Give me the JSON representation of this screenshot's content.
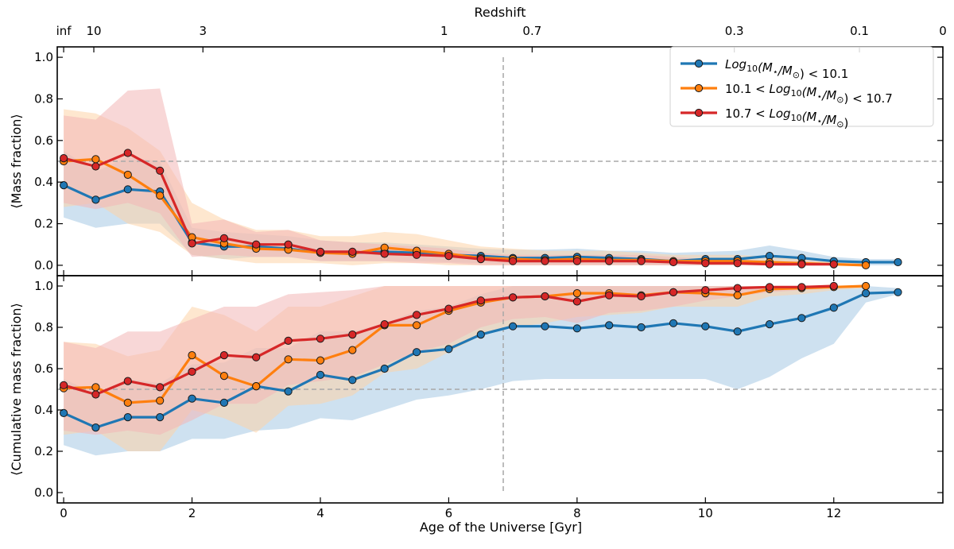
{
  "chart_data": [
    {
      "type": "line",
      "panel": "top",
      "ylabel": "⟨Mass fraction⟩",
      "xlim": [
        -0.1,
        13.7
      ],
      "ylim": [
        -0.05,
        1.05
      ],
      "yticks": [
        0.0,
        0.2,
        0.4,
        0.6,
        0.8,
        1.0
      ],
      "ytick_labels": [
        "0.0",
        "0.2",
        "0.4",
        "0.6",
        "0.8",
        "1.0"
      ],
      "hline": 0.5,
      "vline": 6.85,
      "top_axis": {
        "label": "Redshift",
        "ticks": [
          {
            "label": "inf",
            "age": 0.0
          },
          {
            "label": "10",
            "age": 0.47
          },
          {
            "label": "3",
            "age": 2.17
          },
          {
            "label": "1",
            "age": 5.93
          },
          {
            "label": "0.7",
            "age": 7.3
          },
          {
            "label": "0.3",
            "age": 10.45
          },
          {
            "label": "0.1",
            "age": 12.4
          },
          {
            "label": "0",
            "age": 13.7
          }
        ]
      },
      "legend_position": "top-right",
      "series": [
        {
          "name": "Log10(M*/M☉) < 10.1",
          "legend_parts": [
            "Log",
            "10",
            "(M",
            "⋆",
            "/M",
            "⊙",
            ") < 10.1"
          ],
          "color": "#1f77b4",
          "band_color": "#a6c8e4",
          "x": [
            0,
            0.5,
            1,
            1.5,
            2,
            2.5,
            3,
            3.5,
            4,
            4.5,
            5,
            5.5,
            6,
            6.5,
            7,
            7.5,
            8,
            8.5,
            9,
            9.5,
            10,
            10.5,
            11,
            11.5,
            12,
            12.5,
            13
          ],
          "values": [
            0.385,
            0.315,
            0.365,
            0.355,
            0.11,
            0.09,
            0.09,
            0.08,
            0.06,
            0.06,
            0.065,
            0.06,
            0.05,
            0.045,
            0.035,
            0.035,
            0.04,
            0.035,
            0.03,
            0.02,
            0.03,
            0.03,
            0.045,
            0.035,
            0.02,
            0.015,
            0.015
          ],
          "band_low": [
            0.23,
            0.18,
            0.2,
            0.2,
            0.05,
            0.03,
            0.04,
            0.04,
            0.02,
            0.02,
            0.02,
            0.02,
            0.015,
            0.01,
            0.005,
            0.005,
            0.005,
            0.005,
            0.005,
            0.0,
            0.0,
            0.0,
            0.0,
            0.0,
            0.0,
            0.0,
            0.0
          ],
          "band_high": [
            0.55,
            0.45,
            0.52,
            0.5,
            0.18,
            0.16,
            0.15,
            0.14,
            0.12,
            0.11,
            0.11,
            0.1,
            0.09,
            0.08,
            0.075,
            0.075,
            0.08,
            0.07,
            0.07,
            0.06,
            0.065,
            0.07,
            0.095,
            0.07,
            0.04,
            0.03,
            0.03
          ]
        },
        {
          "name": "10.1 < Log10(M*/M☉) < 10.7",
          "legend_parts": [
            "10.1 < Log",
            "10",
            "(M",
            "⋆",
            "/M",
            "⊙",
            ") < 10.7"
          ],
          "color": "#ff7f0e",
          "band_color": "#fdd3a8",
          "x": [
            0,
            0.5,
            1,
            1.5,
            2,
            2.5,
            3,
            3.5,
            4,
            4.5,
            5,
            5.5,
            6,
            6.5,
            7,
            7.5,
            8,
            8.5,
            9,
            9.5,
            10,
            10.5,
            11,
            11.5,
            12,
            12.5
          ],
          "values": [
            0.5,
            0.51,
            0.435,
            0.335,
            0.135,
            0.105,
            0.08,
            0.075,
            0.06,
            0.055,
            0.085,
            0.07,
            0.055,
            0.035,
            0.03,
            0.025,
            0.03,
            0.025,
            0.025,
            0.02,
            0.02,
            0.02,
            0.015,
            0.01,
            0.005,
            0.0
          ],
          "band_low": [
            0.28,
            0.3,
            0.2,
            0.16,
            0.05,
            0.03,
            0.01,
            0.01,
            0.01,
            0.0,
            0.01,
            0.01,
            0.0,
            0.0,
            0.0,
            0.0,
            0.0,
            0.0,
            0.0,
            0.0,
            0.0,
            0.0,
            0.0,
            0.0,
            0.0,
            0.0
          ],
          "band_high": [
            0.75,
            0.73,
            0.66,
            0.55,
            0.3,
            0.22,
            0.17,
            0.17,
            0.14,
            0.14,
            0.16,
            0.15,
            0.12,
            0.09,
            0.08,
            0.07,
            0.07,
            0.07,
            0.06,
            0.05,
            0.05,
            0.05,
            0.04,
            0.03,
            0.02,
            0.01
          ]
        },
        {
          "name": "10.7 < Log10(M*/M☉)",
          "legend_parts": [
            "10.7 < Log",
            "10",
            "(M",
            "⋆",
            "/M",
            "⊙",
            ")"
          ],
          "color": "#d62728",
          "band_color": "#f2b6b6",
          "x": [
            0,
            0.5,
            1,
            1.5,
            2,
            2.5,
            3,
            3.5,
            4,
            4.5,
            5,
            5.5,
            6,
            6.5,
            7,
            7.5,
            8,
            8.5,
            9,
            9.5,
            10,
            10.5,
            11,
            11.5,
            12
          ],
          "values": [
            0.515,
            0.475,
            0.54,
            0.455,
            0.105,
            0.13,
            0.1,
            0.1,
            0.065,
            0.065,
            0.055,
            0.05,
            0.045,
            0.03,
            0.02,
            0.02,
            0.02,
            0.02,
            0.02,
            0.015,
            0.01,
            0.01,
            0.005,
            0.005,
            0.005
          ],
          "band_low": [
            0.3,
            0.27,
            0.3,
            0.25,
            0.04,
            0.05,
            0.04,
            0.04,
            0.02,
            0.02,
            0.02,
            0.01,
            0.01,
            0.0,
            0.0,
            0.0,
            0.0,
            0.0,
            0.0,
            0.0,
            0.0,
            0.0,
            0.0,
            0.0,
            0.0
          ],
          "band_high": [
            0.72,
            0.7,
            0.84,
            0.85,
            0.2,
            0.22,
            0.16,
            0.17,
            0.12,
            0.11,
            0.1,
            0.09,
            0.08,
            0.06,
            0.05,
            0.05,
            0.05,
            0.05,
            0.05,
            0.04,
            0.03,
            0.03,
            0.02,
            0.02,
            0.01
          ]
        }
      ]
    },
    {
      "type": "line",
      "panel": "bottom",
      "ylabel": "⟨Cumulative mass fraction⟩",
      "xlabel": "Age of the Universe [Gyr]",
      "xlim": [
        -0.1,
        13.7
      ],
      "ylim": [
        -0.05,
        1.05
      ],
      "xticks": [
        0,
        2,
        4,
        6,
        8,
        10,
        12
      ],
      "xtick_labels": [
        "0",
        "2",
        "4",
        "6",
        "8",
        "10",
        "12"
      ],
      "yticks": [
        0.0,
        0.2,
        0.4,
        0.6,
        0.8,
        1.0
      ],
      "ytick_labels": [
        "0.0",
        "0.2",
        "0.4",
        "0.6",
        "0.8",
        "1.0"
      ],
      "hline": 0.5,
      "vline": 6.85,
      "series": [
        {
          "name": "Log10(M*/M☉) < 10.1",
          "color": "#1f77b4",
          "band_color": "#a6c8e4",
          "x": [
            0,
            0.5,
            1,
            1.5,
            2,
            2.5,
            3,
            3.5,
            4,
            4.5,
            5,
            5.5,
            6,
            6.5,
            7,
            7.5,
            8,
            8.5,
            9,
            9.5,
            10,
            10.5,
            11,
            11.5,
            12,
            12.5,
            13
          ],
          "values": [
            0.385,
            0.315,
            0.365,
            0.365,
            0.455,
            0.435,
            0.515,
            0.49,
            0.57,
            0.545,
            0.6,
            0.68,
            0.695,
            0.765,
            0.805,
            0.805,
            0.795,
            0.81,
            0.8,
            0.82,
            0.805,
            0.78,
            0.815,
            0.845,
            0.895,
            0.965,
            0.97
          ],
          "band_low": [
            0.23,
            0.18,
            0.2,
            0.2,
            0.26,
            0.26,
            0.3,
            0.31,
            0.36,
            0.35,
            0.4,
            0.45,
            0.47,
            0.5,
            0.54,
            0.55,
            0.55,
            0.55,
            0.55,
            0.55,
            0.55,
            0.5,
            0.56,
            0.65,
            0.72,
            0.92,
            0.96
          ],
          "band_high": [
            0.55,
            0.48,
            0.55,
            0.53,
            0.62,
            0.63,
            0.7,
            0.7,
            0.78,
            0.78,
            0.82,
            0.88,
            0.9,
            0.96,
            1.0,
            1.0,
            1.0,
            1.0,
            1.0,
            1.0,
            1.0,
            1.0,
            1.0,
            1.0,
            1.0,
            1.0,
            0.99
          ]
        },
        {
          "name": "10.1 < Log10(M*/M☉) < 10.7",
          "color": "#ff7f0e",
          "band_color": "#fdd3a8",
          "x": [
            0,
            0.5,
            1,
            1.5,
            2,
            2.5,
            3,
            3.5,
            4,
            4.5,
            5,
            5.5,
            6,
            6.5,
            7,
            7.5,
            8,
            8.5,
            9,
            9.5,
            10,
            10.5,
            11,
            11.5,
            12,
            12.5
          ],
          "values": [
            0.505,
            0.51,
            0.435,
            0.445,
            0.665,
            0.565,
            0.515,
            0.645,
            0.64,
            0.69,
            0.81,
            0.81,
            0.88,
            0.92,
            0.945,
            0.95,
            0.965,
            0.965,
            0.955,
            0.97,
            0.965,
            0.955,
            0.985,
            0.99,
            0.995,
            1.0
          ],
          "band_low": [
            0.28,
            0.3,
            0.2,
            0.2,
            0.4,
            0.36,
            0.29,
            0.42,
            0.43,
            0.47,
            0.58,
            0.6,
            0.68,
            0.76,
            0.8,
            0.82,
            0.85,
            0.86,
            0.87,
            0.9,
            0.9,
            0.9,
            0.95,
            0.96,
            0.98,
            0.99
          ],
          "band_high": [
            0.73,
            0.72,
            0.66,
            0.69,
            0.9,
            0.86,
            0.78,
            0.9,
            0.9,
            0.95,
            1.0,
            1.0,
            1.0,
            1.0,
            1.0,
            1.0,
            1.0,
            1.0,
            1.0,
            1.0,
            1.0,
            1.0,
            1.0,
            1.0,
            1.0,
            1.0
          ]
        },
        {
          "name": "10.7 < Log10(M*/M☉)",
          "color": "#d62728",
          "band_color": "#f2b6b6",
          "x": [
            0,
            0.5,
            1,
            1.5,
            2,
            2.5,
            3,
            3.5,
            4,
            4.5,
            5,
            5.5,
            6,
            6.5,
            7,
            7.5,
            8,
            8.5,
            9,
            9.5,
            10,
            10.5,
            11,
            11.5,
            12
          ],
          "values": [
            0.52,
            0.475,
            0.54,
            0.51,
            0.585,
            0.665,
            0.655,
            0.735,
            0.745,
            0.765,
            0.815,
            0.86,
            0.89,
            0.93,
            0.945,
            0.95,
            0.925,
            0.955,
            0.95,
            0.97,
            0.98,
            0.99,
            0.995,
            0.995,
            1.0
          ],
          "band_low": [
            0.3,
            0.28,
            0.3,
            0.28,
            0.35,
            0.43,
            0.43,
            0.52,
            0.54,
            0.56,
            0.62,
            0.68,
            0.72,
            0.8,
            0.84,
            0.85,
            0.82,
            0.87,
            0.88,
            0.9,
            0.93,
            0.95,
            0.97,
            0.98,
            0.99
          ],
          "band_high": [
            0.73,
            0.7,
            0.78,
            0.78,
            0.84,
            0.9,
            0.9,
            0.96,
            0.97,
            0.98,
            1.0,
            1.0,
            1.0,
            1.0,
            1.0,
            1.0,
            1.0,
            1.0,
            1.0,
            1.0,
            1.0,
            1.0,
            1.0,
            1.0,
            1.0
          ]
        }
      ]
    }
  ]
}
